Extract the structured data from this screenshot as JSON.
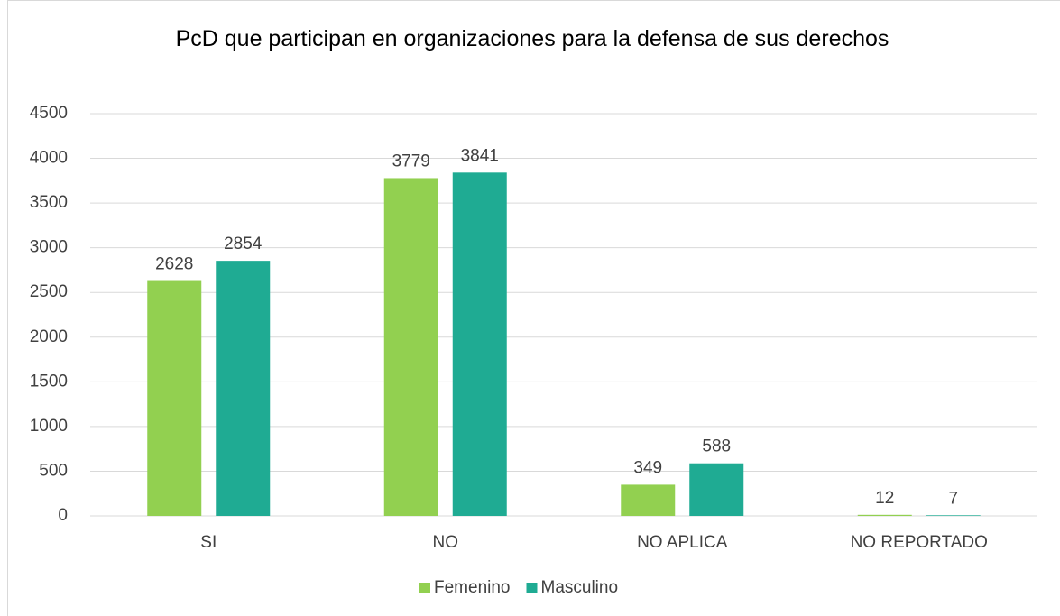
{
  "chart_data": {
    "type": "bar",
    "title": "PcD que participan en organizaciones para la defensa de sus derechos",
    "categories": [
      "SI",
      "NO",
      "NO APLICA",
      "NO REPORTADO"
    ],
    "series": [
      {
        "name": "Femenino",
        "color": "#92d050",
        "values": [
          2628,
          3779,
          349,
          12
        ]
      },
      {
        "name": "Masculino",
        "color": "#1fab93",
        "values": [
          2854,
          3841,
          588,
          7
        ]
      }
    ],
    "ylim": [
      0,
      4500
    ],
    "yticks": [
      0,
      500,
      1000,
      1500,
      2000,
      2500,
      3000,
      3500,
      4000,
      4500
    ],
    "grid": true,
    "legend": "bottom"
  }
}
